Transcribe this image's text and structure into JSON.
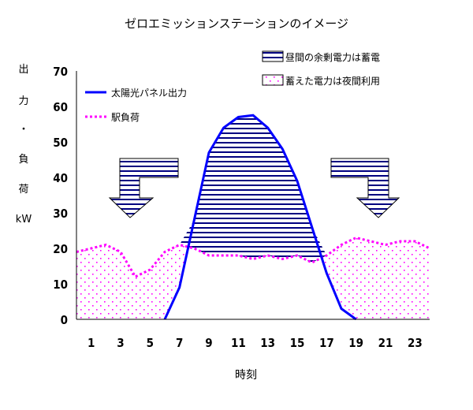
{
  "chart_data": {
    "type": "line",
    "title": "ゼロエミッションステーションのイメージ",
    "xlabel": "時刻",
    "ylabel_chars": [
      "出",
      "力",
      "・",
      "負",
      "荷",
      "kW"
    ],
    "ylim": [
      0,
      70
    ],
    "yticks": [
      0,
      10,
      20,
      30,
      40,
      50,
      60,
      70
    ],
    "xlim": [
      0,
      24
    ],
    "xticks": [
      1,
      3,
      5,
      7,
      9,
      11,
      13,
      15,
      17,
      19,
      21,
      23
    ],
    "x": [
      0,
      1,
      2,
      3,
      4,
      5,
      6,
      7,
      8,
      9,
      10,
      11,
      12,
      13,
      14,
      15,
      16,
      17,
      18,
      19,
      20,
      21,
      22,
      23,
      24
    ],
    "series": [
      {
        "name": "太陽光パネル出力",
        "color": "#0000ff",
        "style": "solid",
        "values": [
          null,
          null,
          null,
          null,
          null,
          null,
          0,
          9,
          28,
          47,
          54,
          57,
          57.5,
          54,
          48,
          39,
          26,
          13,
          3,
          0,
          null,
          null,
          null,
          null,
          null
        ]
      },
      {
        "name": "駅負荷",
        "color": "#ff00ff",
        "style": "dotted",
        "values": [
          19,
          20,
          21,
          19,
          12,
          14,
          19,
          21,
          20,
          18,
          18,
          18,
          17,
          18,
          17,
          18,
          16,
          18,
          21,
          23,
          22,
          21,
          22,
          22,
          20
        ]
      }
    ],
    "legend": {
      "stored": "昼間の余剰電力は蓄電",
      "used": "蓄えた電力は夜間利用",
      "solar": "太陽光パネル出力",
      "load": "駅負荷"
    },
    "colors": {
      "solar": "#0000ff",
      "load": "#ff00ff",
      "stripe": "#000080"
    }
  }
}
